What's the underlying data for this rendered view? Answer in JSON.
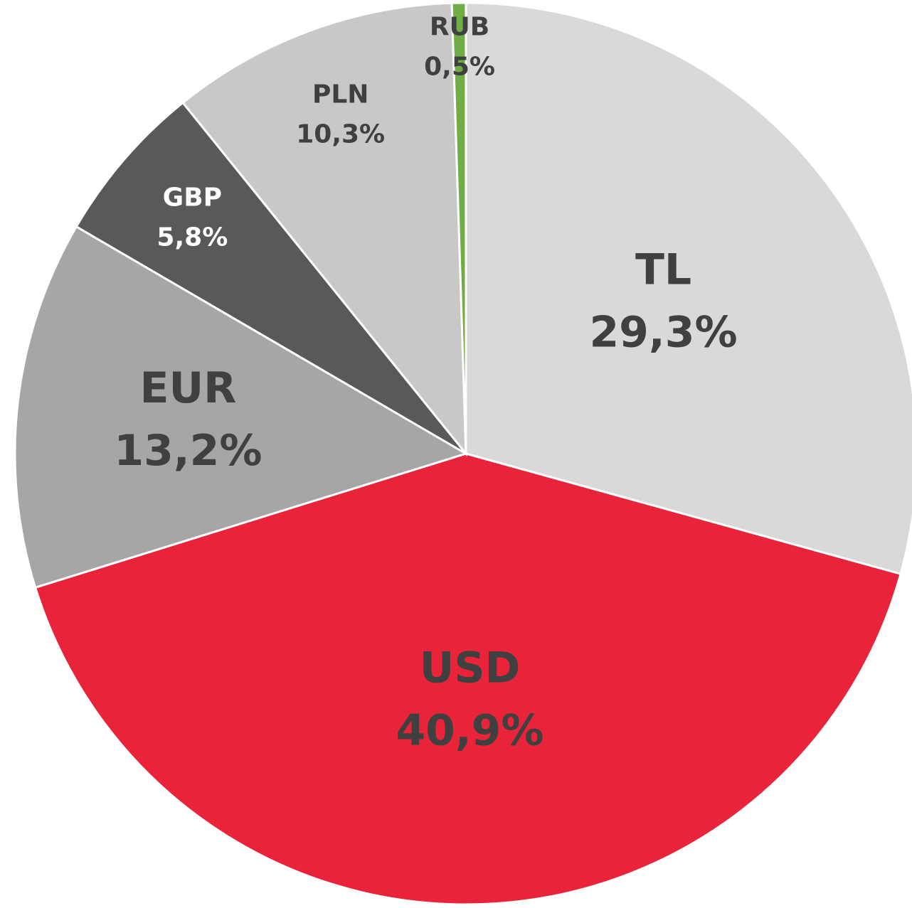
{
  "chart_data": {
    "type": "pie",
    "categories": [
      "TL",
      "USD",
      "EUR",
      "GBP",
      "PLN",
      "RUB"
    ],
    "values": [
      29.3,
      40.9,
      13.2,
      5.8,
      10.3,
      0.5
    ],
    "value_labels": [
      "29,3%",
      "40,9%",
      "13,2%",
      "5,8%",
      "10,3%",
      "0,5%"
    ],
    "colors": [
      "#d9d9d9",
      "#e8233a",
      "#a6a6a6",
      "#595959",
      "#c8c8c8",
      "#70ad47"
    ]
  }
}
